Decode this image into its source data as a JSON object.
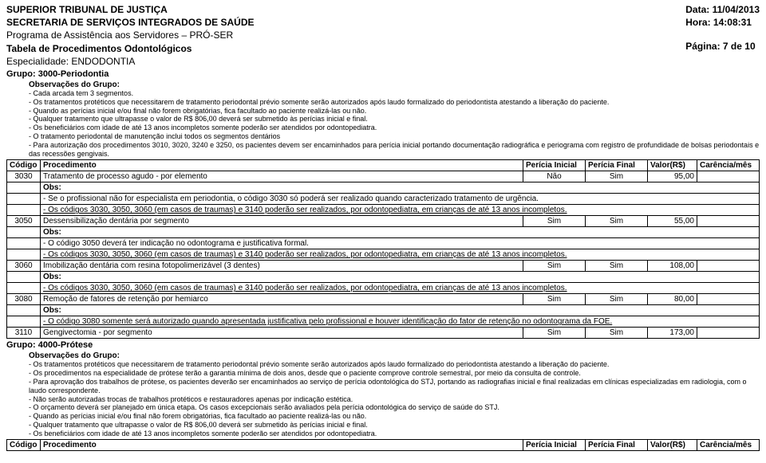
{
  "header": {
    "line1": "SUPERIOR TRIBUNAL DE JUSTIÇA",
    "line2": "SECRETARIA DE SERVIÇOS INTEGRADOS DE SAÚDE",
    "line3": "Programa de Assistência aos Servidores – PRÓ-SER",
    "line4": "Tabela de Procedimentos Odontológicos",
    "line5": "Especialidade: ENDODONTIA",
    "data_label": "Data:",
    "data_value": "11/04/2013",
    "hora_label": "Hora:",
    "hora_value": "14:08:31",
    "pagina_label": "Página:",
    "pagina_value": "7 de 10"
  },
  "grupo1": {
    "title": "Grupo: 3000-Periodontia",
    "obs_head": "Observações do Grupo:",
    "obs": [
      "- Cada arcada tem 3 segmentos.",
      "- Os tratamentos protéticos que necessitarem de tratamento periodontal prévio somente serão autorizados após laudo formalizado do periodontista atestando a liberação do paciente.",
      "- Quando as perícias inicial e/ou final não forem obrigatórias, fica facultado ao paciente realizá-las ou não.",
      "- Qualquer tratamento que ultrapasse o valor de R$ 806,00 deverá ser submetido às perícias inicial e final.",
      "- Os beneficiários com idade de até 13 anos incompletos somente poderão ser atendidos por odontopediatra.",
      "- O tratamento periodontal de manutenção inclui todos os segmentos dentários",
      "- Para autorização dos procedimentos 3010, 3020, 3240 e 3250, os pacientes devem ser encaminhados para perícia inicial portando documentação radiográfica e periograma com registro de profundidade de bolsas periodontais e das recessões gengivais."
    ]
  },
  "cols": {
    "codigo": "Código",
    "proc": "Procedimento",
    "pi": "Perícia Inicial",
    "pf": "Perícia Final",
    "valor": "Valor(R$)",
    "car": "Carência/mês"
  },
  "rows": [
    {
      "codigo": "3030",
      "proc": "Tratamento de processo agudo - por elemento",
      "pi": "Não",
      "pf": "Sim",
      "valor": "95,00",
      "car": "",
      "obs": [
        "- Se o profissional não for especialista em periodontia, o código 3030 só  poderá ser realizado quando caracterizado tratamento de urgência.",
        "- Os códigos 3030, 3050, 3060 (em casos de traumas) e 3140 poderão ser realizados, por odontopediatra, em crianças de até 13 anos incompletos."
      ]
    },
    {
      "codigo": "3050",
      "proc": "Dessensibilização dentária por segmento",
      "pi": "Sim",
      "pf": "Sim",
      "valor": "55,00",
      "car": "",
      "obs": [
        "- O código 3050 deverá ter indicação no odontograma e justificativa formal.",
        "- Os códigos 3030, 3050, 3060 (em casos de traumas) e 3140 poderão ser realizados, por odontopediatra, em crianças de até 13 anos incompletos."
      ]
    },
    {
      "codigo": "3060",
      "proc": "Imobilização dentária com resina fotopolimerizável (3 dentes)",
      "pi": "Sim",
      "pf": "Sim",
      "valor": "108,00",
      "car": "",
      "obs": [
        "- Os códigos 3030, 3050, 3060 (em casos de traumas) e 3140 poderão ser realizados, por odontopediatra, em crianças de até 13 anos incompletos."
      ]
    },
    {
      "codigo": "3080",
      "proc": "Remoção de fatores de retenção por hemiarco",
      "pi": "Sim",
      "pf": "Sim",
      "valor": "80,00",
      "car": "",
      "obs": [
        "- O código 3080 somente será autorizado quando apresentada justificativa pelo profissional e houver identificação do fator de retenção no odontograma da FOE."
      ]
    },
    {
      "codigo": "3110",
      "proc": "Gengivectomia - por segmento",
      "pi": "Sim",
      "pf": "Sim",
      "valor": "173,00",
      "car": "",
      "obs": []
    }
  ],
  "obs_label": "Obs:",
  "grupo2": {
    "title": "Grupo: 4000-Prótese",
    "obs_head": "Observações do Grupo:",
    "obs": [
      "- Os tratamentos protéticos que necessitarem de tratamento periodontal prévio somente serão autorizados após laudo formalizado do periodontista atestando a liberação do paciente.",
      "- Os procedimentos na especialidade de prótese terão a garantia mínima de dois anos, desde que o paciente comprove controle semestral, por meio da consulta de controle.",
      "- Para aprovação dos trabalhos de prótese, os pacientes deverão ser encaminhados ao serviço de perícia odontológica do STJ, portando as radiografias inicial e final realizadas em clínicas especializadas em radiologia, com o laudo correspondente.",
      "- Não serão autorizadas trocas de trabalhos protéticos e restauradores apenas por indicação estética.",
      "- O orçamento deverá ser planejado em única etapa. Os casos excepcionais serão avaliados pela perícia odontológica do serviço de saúde do STJ.",
      "- Quando as perícias inicial e/ou final não forem obrigatórias, fica facultado ao paciente realizá-las ou não.",
      "- Qualquer tratamento que ultrapasse o valor de R$ 806,00 deverá ser submetido às perícias inicial e final.",
      "- Os beneficiários com idade de até 13 anos incompletos somente poderão ser atendidos por odontopediatra."
    ]
  }
}
